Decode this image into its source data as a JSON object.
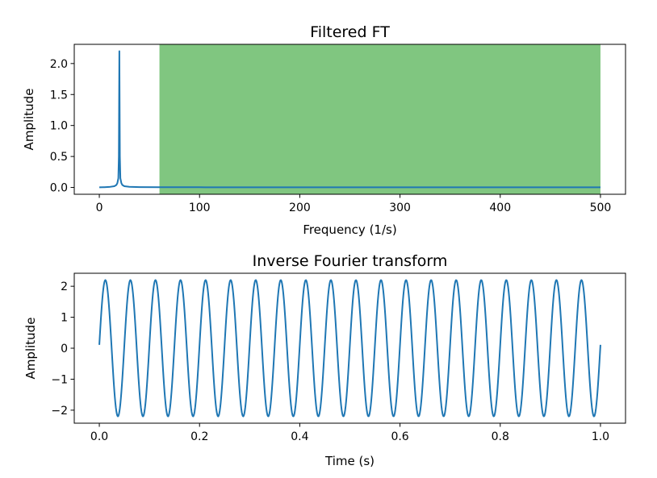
{
  "chart_data": [
    {
      "type": "line",
      "title": "Filtered FT",
      "xlabel": "Frequency (1/s)",
      "ylabel": "Amplitude",
      "xlim": [
        -25,
        525
      ],
      "ylim": [
        -0.11,
        2.31
      ],
      "xticks": [
        0,
        100,
        200,
        300,
        400,
        500
      ],
      "xtick_labels": [
        "0",
        "100",
        "200",
        "300",
        "400",
        "500"
      ],
      "yticks": [
        0.0,
        0.5,
        1.0,
        1.5,
        2.0
      ],
      "ytick_labels": [
        "0.0",
        "0.5",
        "1.0",
        "1.5",
        "2.0"
      ],
      "grid": false,
      "series": [
        {
          "color": "#1f77b4",
          "x": [
            0,
            5,
            10,
            15,
            17,
            18,
            19,
            19.5,
            20,
            20.5,
            21,
            22,
            23,
            25,
            30,
            40,
            60,
            100,
            200,
            300,
            400,
            500
          ],
          "values": [
            0.002,
            0.004,
            0.008,
            0.02,
            0.04,
            0.07,
            0.15,
            0.5,
            2.2,
            0.5,
            0.15,
            0.07,
            0.04,
            0.02,
            0.01,
            0.006,
            0.004,
            0.003,
            0.002,
            0.002,
            0.002,
            0.002
          ]
        }
      ],
      "shaded_region": {
        "x_start": 60,
        "x_end": 500,
        "color": "#2ca02c",
        "opacity": 0.6
      }
    },
    {
      "type": "line",
      "title": "Inverse Fourier transform",
      "xlabel": "Time (s)",
      "ylabel": "Amplitude",
      "xlim": [
        -0.05,
        1.05
      ],
      "ylim": [
        -2.42,
        2.42
      ],
      "xticks": [
        0.0,
        0.2,
        0.4,
        0.6,
        0.8,
        1.0
      ],
      "xtick_labels": [
        "0.0",
        "0.2",
        "0.4",
        "0.6",
        "0.8",
        "1.0"
      ],
      "yticks": [
        -2,
        -1,
        0,
        1,
        2
      ],
      "ytick_labels": [
        "−2",
        "−1",
        "0",
        "1",
        "2"
      ],
      "grid": false,
      "series": [
        {
          "color": "#1f77b4",
          "function": "amplitude * sin(2*pi*frequency*t + phase)",
          "amplitude": 2.2,
          "frequency": 20,
          "phase": 0.05,
          "t_start": 0,
          "t_end": 1,
          "samples": 1000
        }
      ]
    }
  ]
}
